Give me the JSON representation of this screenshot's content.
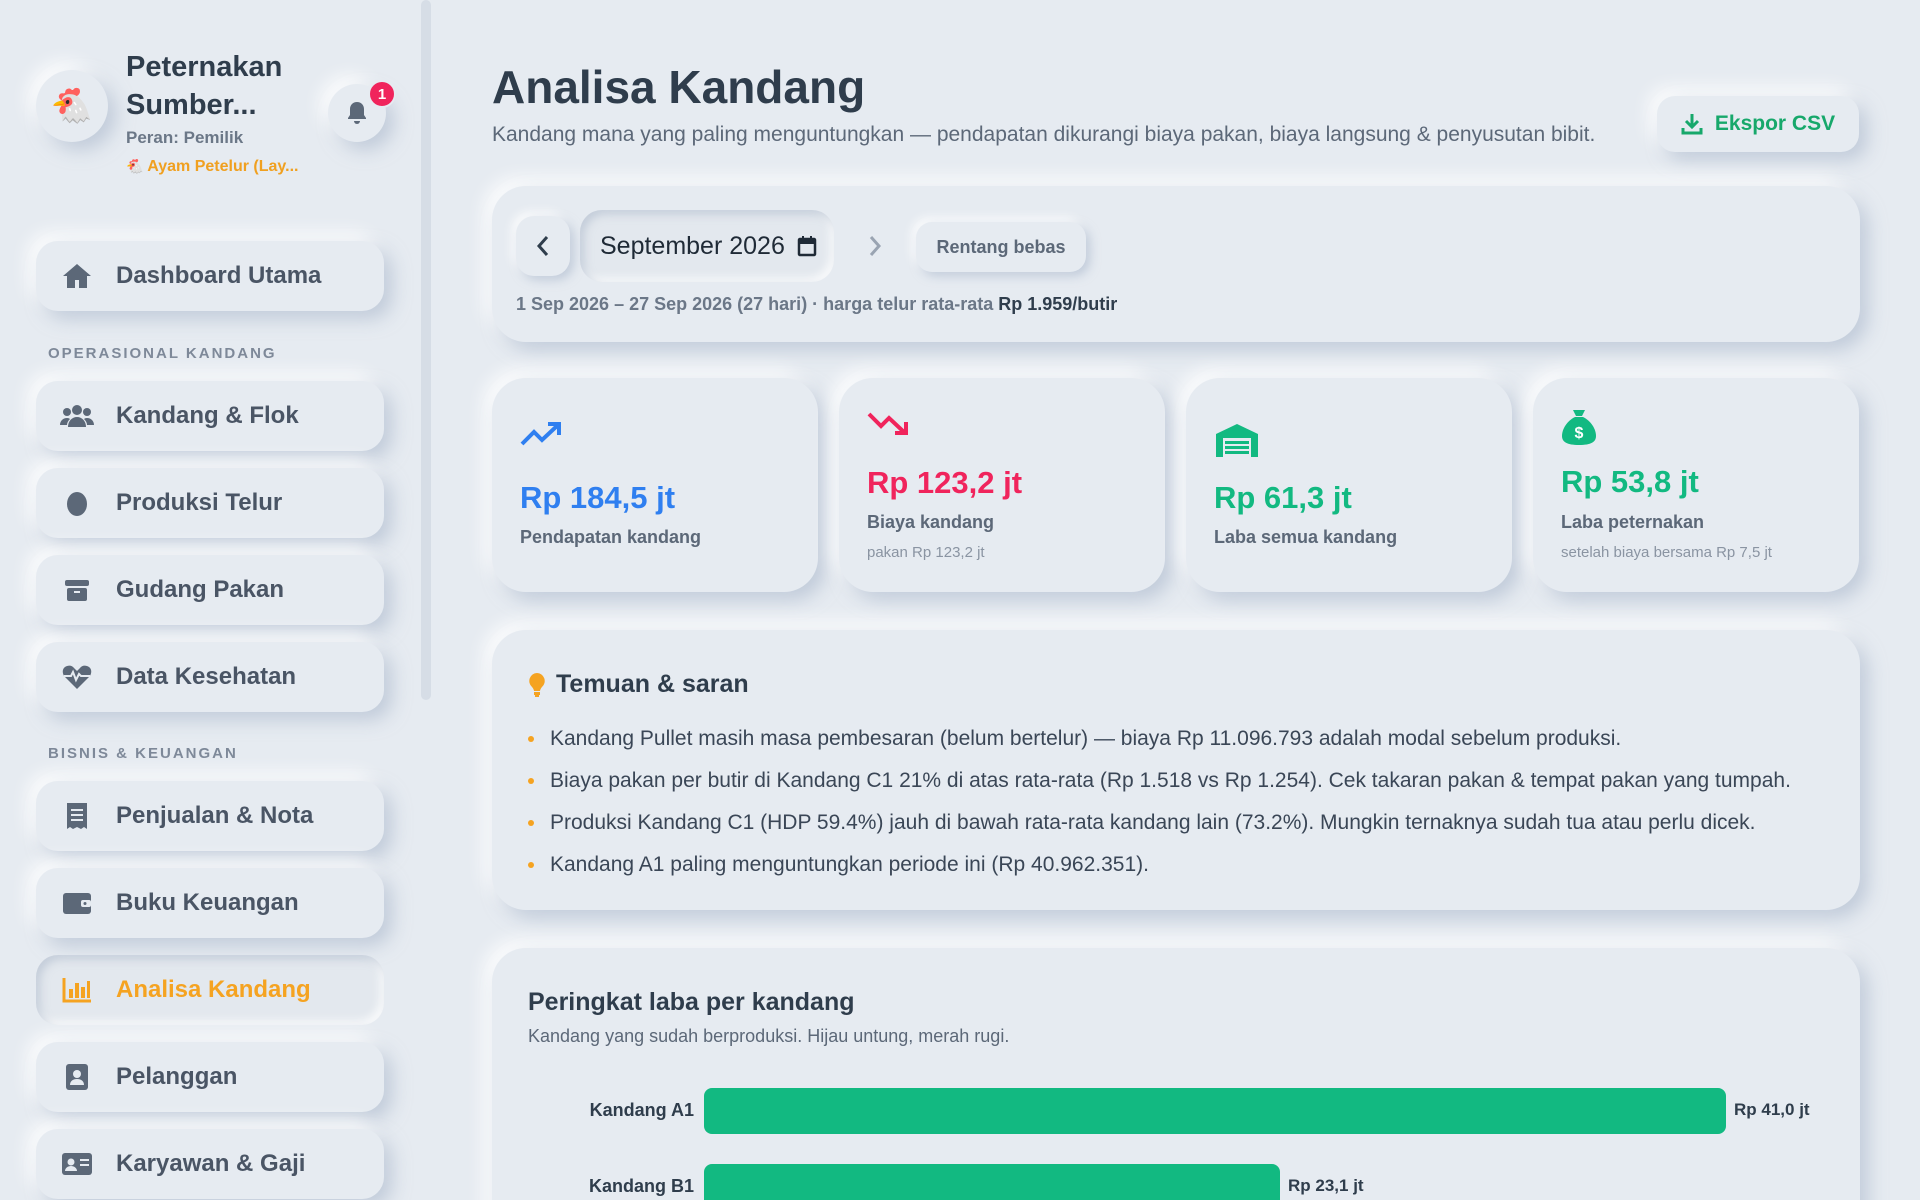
{
  "brand": {
    "name": "Peternakan Sumber...",
    "role": "Peran: Pemilik",
    "type": "Ayam Petelur (Lay...",
    "notifications": "1"
  },
  "nav": {
    "dashboard": "Dashboard Utama",
    "section_ops": "OPERASIONAL KANDANG",
    "kandang": "Kandang & Flok",
    "produksi": "Produksi Telur",
    "gudang": "Gudang Pakan",
    "kesehatan": "Data Kesehatan",
    "section_biz": "BISNIS & KEUANGAN",
    "penjualan": "Penjualan & Nota",
    "buku": "Buku Keuangan",
    "analisa": "Analisa Kandang",
    "pelanggan": "Pelanggan",
    "karyawan": "Karyawan & Gaji"
  },
  "header": {
    "title": "Analisa Kandang",
    "subtitle": "Kandang mana yang paling menguntungkan — pendapatan dikurangi biaya pakan, biaya langsung & penyusutan bibit.",
    "export_label": "Ekspor CSV"
  },
  "period": {
    "month": "September",
    "year": "2026",
    "free_range_label": "Rentang bebas",
    "range_text": "1 Sep 2026 – 27 Sep 2026 (27 hari) · harga telur rata-rata",
    "egg_price": "Rp 1.959/butir"
  },
  "stats": [
    {
      "value": "Rp 184,5 jt",
      "label": "Pendapatan kandang",
      "note": "",
      "color": "#2f7ff0",
      "icon": "trend-up-icon"
    },
    {
      "value": "Rp 123,2 jt",
      "label": "Biaya kandang",
      "note": "pakan Rp 123,2 jt",
      "color": "#f0245c",
      "icon": "trend-down-icon"
    },
    {
      "value": "Rp 61,3 jt",
      "label": "Laba semua kandang",
      "note": "",
      "color": "#12b981",
      "icon": "warehouse-icon"
    },
    {
      "value": "Rp 53,8 jt",
      "label": "Laba peternakan",
      "note": "setelah biaya bersama Rp 7,5 jt",
      "color": "#12b981",
      "icon": "money-bag-icon"
    }
  ],
  "findings": {
    "title": "Temuan & saran",
    "items": [
      "Kandang Pullet masih masa pembesaran (belum bertelur) — biaya Rp 11.096.793 adalah modal sebelum produksi.",
      "Biaya pakan per butir di Kandang C1 21% di atas rata-rata (Rp 1.518 vs Rp 1.254). Cek takaran pakan & tempat pakan yang tumpah.",
      "Produksi Kandang C1 (HDP 59.4%) jauh di bawah rata-rata kandang lain (73.2%). Mungkin ternaknya sudah tua atau perlu dicek.",
      "Kandang A1 paling menguntungkan periode ini (Rp 40.962.351)."
    ]
  },
  "ranking": {
    "title": "Peringkat laba per kandang",
    "subtitle": "Kandang yang sudah berproduksi. Hijau untung, merah rugi.",
    "rows": [
      {
        "name": "Kandang A1",
        "value": 41.0,
        "label": "Rp 41,0 jt"
      },
      {
        "name": "Kandang B1",
        "value": 23.1,
        "label": "Rp 23,1 jt"
      }
    ],
    "max": 41.0,
    "profit_color": "#12b981"
  }
}
